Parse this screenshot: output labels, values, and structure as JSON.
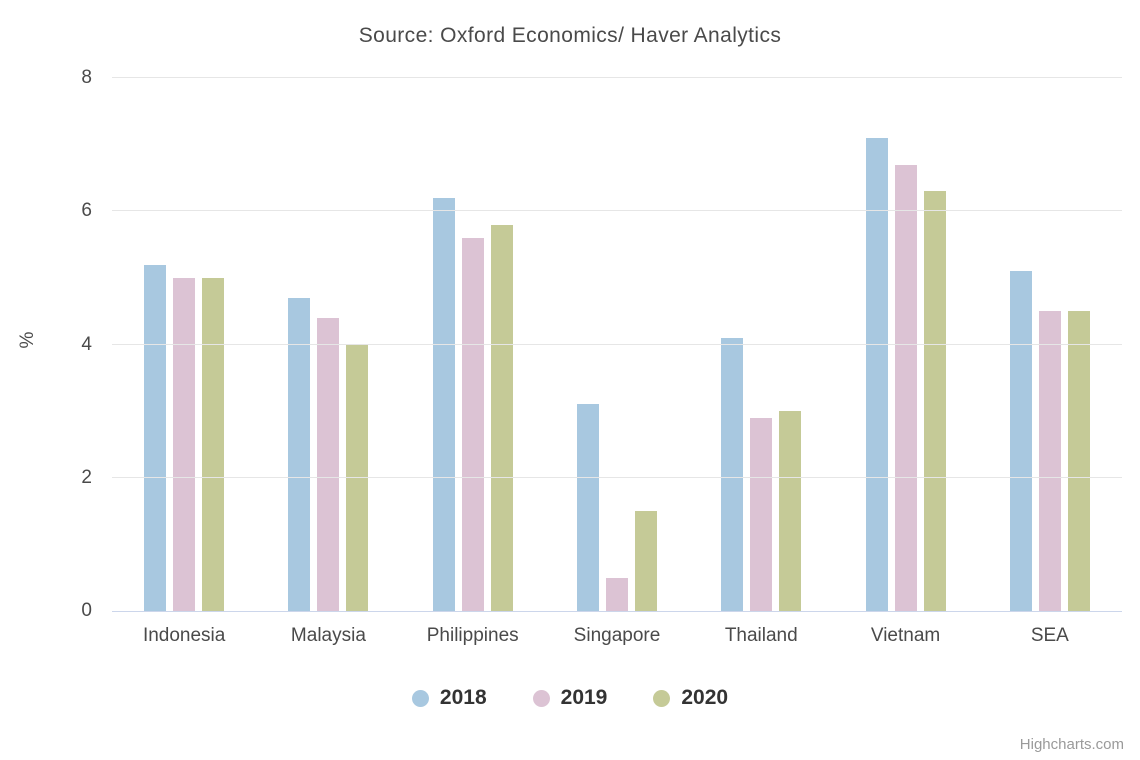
{
  "title": "Source: Oxford Economics/ Haver Analytics",
  "credits": "Highcharts.com",
  "chart_data": {
    "type": "bar",
    "title": "Source: Oxford Economics/ Haver Analytics",
    "categories": [
      "Indonesia",
      "Malaysia",
      "Philippines",
      "Singapore",
      "Thailand",
      "Vietnam",
      "SEA"
    ],
    "series": [
      {
        "name": "2018",
        "color": "#a8c8e0",
        "values": [
          5.2,
          4.7,
          6.2,
          3.1,
          4.1,
          7.1,
          5.1
        ]
      },
      {
        "name": "2019",
        "color": "#dcc3d4",
        "values": [
          5.0,
          4.4,
          5.6,
          0.5,
          2.9,
          6.7,
          4.5
        ]
      },
      {
        "name": "2020",
        "color": "#c5ca97",
        "values": [
          5.0,
          4.0,
          5.8,
          1.5,
          3.0,
          6.3,
          4.5
        ]
      }
    ],
    "xlabel": "",
    "ylabel": "%",
    "ylim": [
      0,
      8
    ],
    "yticks": [
      0,
      2,
      4,
      6,
      8
    ],
    "grid": true,
    "legend_position": "bottom"
  },
  "colors": {
    "gridline": "#e6e6e6",
    "axis_line": "#ccd6eb",
    "title_text": "#4a4a4a",
    "axis_text": "#4a4a4a",
    "legend_text": "#333333",
    "credits_text": "#9a9a9a",
    "background": "#ffffff"
  }
}
